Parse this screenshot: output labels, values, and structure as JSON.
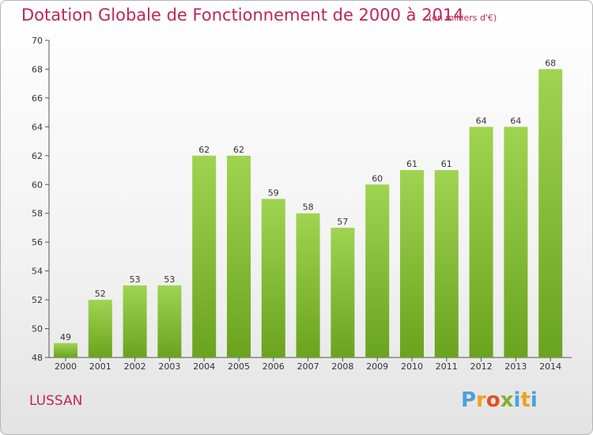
{
  "title": "Dotation Globale de Fonctionnement de 2000 à 2014",
  "unit_note": "(en milliers d'€)",
  "commune": "LUSSAN",
  "logo": {
    "letters": [
      "P",
      "r",
      "o",
      "x",
      "i",
      "t",
      "i"
    ],
    "colors": [
      "#4ea0d8",
      "#f0a020",
      "#e05020",
      "#80b030",
      "#4ea0d8",
      "#f0a020",
      "#4ea0d8"
    ]
  },
  "colors": {
    "bar_light": "#9fd451",
    "bar_dark": "#6aa31e",
    "title": "#c0245c"
  },
  "chart_data": {
    "type": "bar",
    "title": "Dotation Globale de Fonctionnement de 2000 à 2014",
    "categories": [
      "2000",
      "2001",
      "2002",
      "2003",
      "2004",
      "2005",
      "2006",
      "2007",
      "2008",
      "2009",
      "2010",
      "2011",
      "2012",
      "2013",
      "2014"
    ],
    "values": [
      49,
      52,
      53,
      53,
      62,
      62,
      59,
      58,
      57,
      60,
      61,
      61,
      64,
      64,
      68
    ],
    "ylim": [
      48,
      70
    ],
    "yticks": [
      48,
      50,
      52,
      54,
      56,
      58,
      60,
      62,
      64,
      66,
      68,
      70
    ],
    "grid": false
  }
}
